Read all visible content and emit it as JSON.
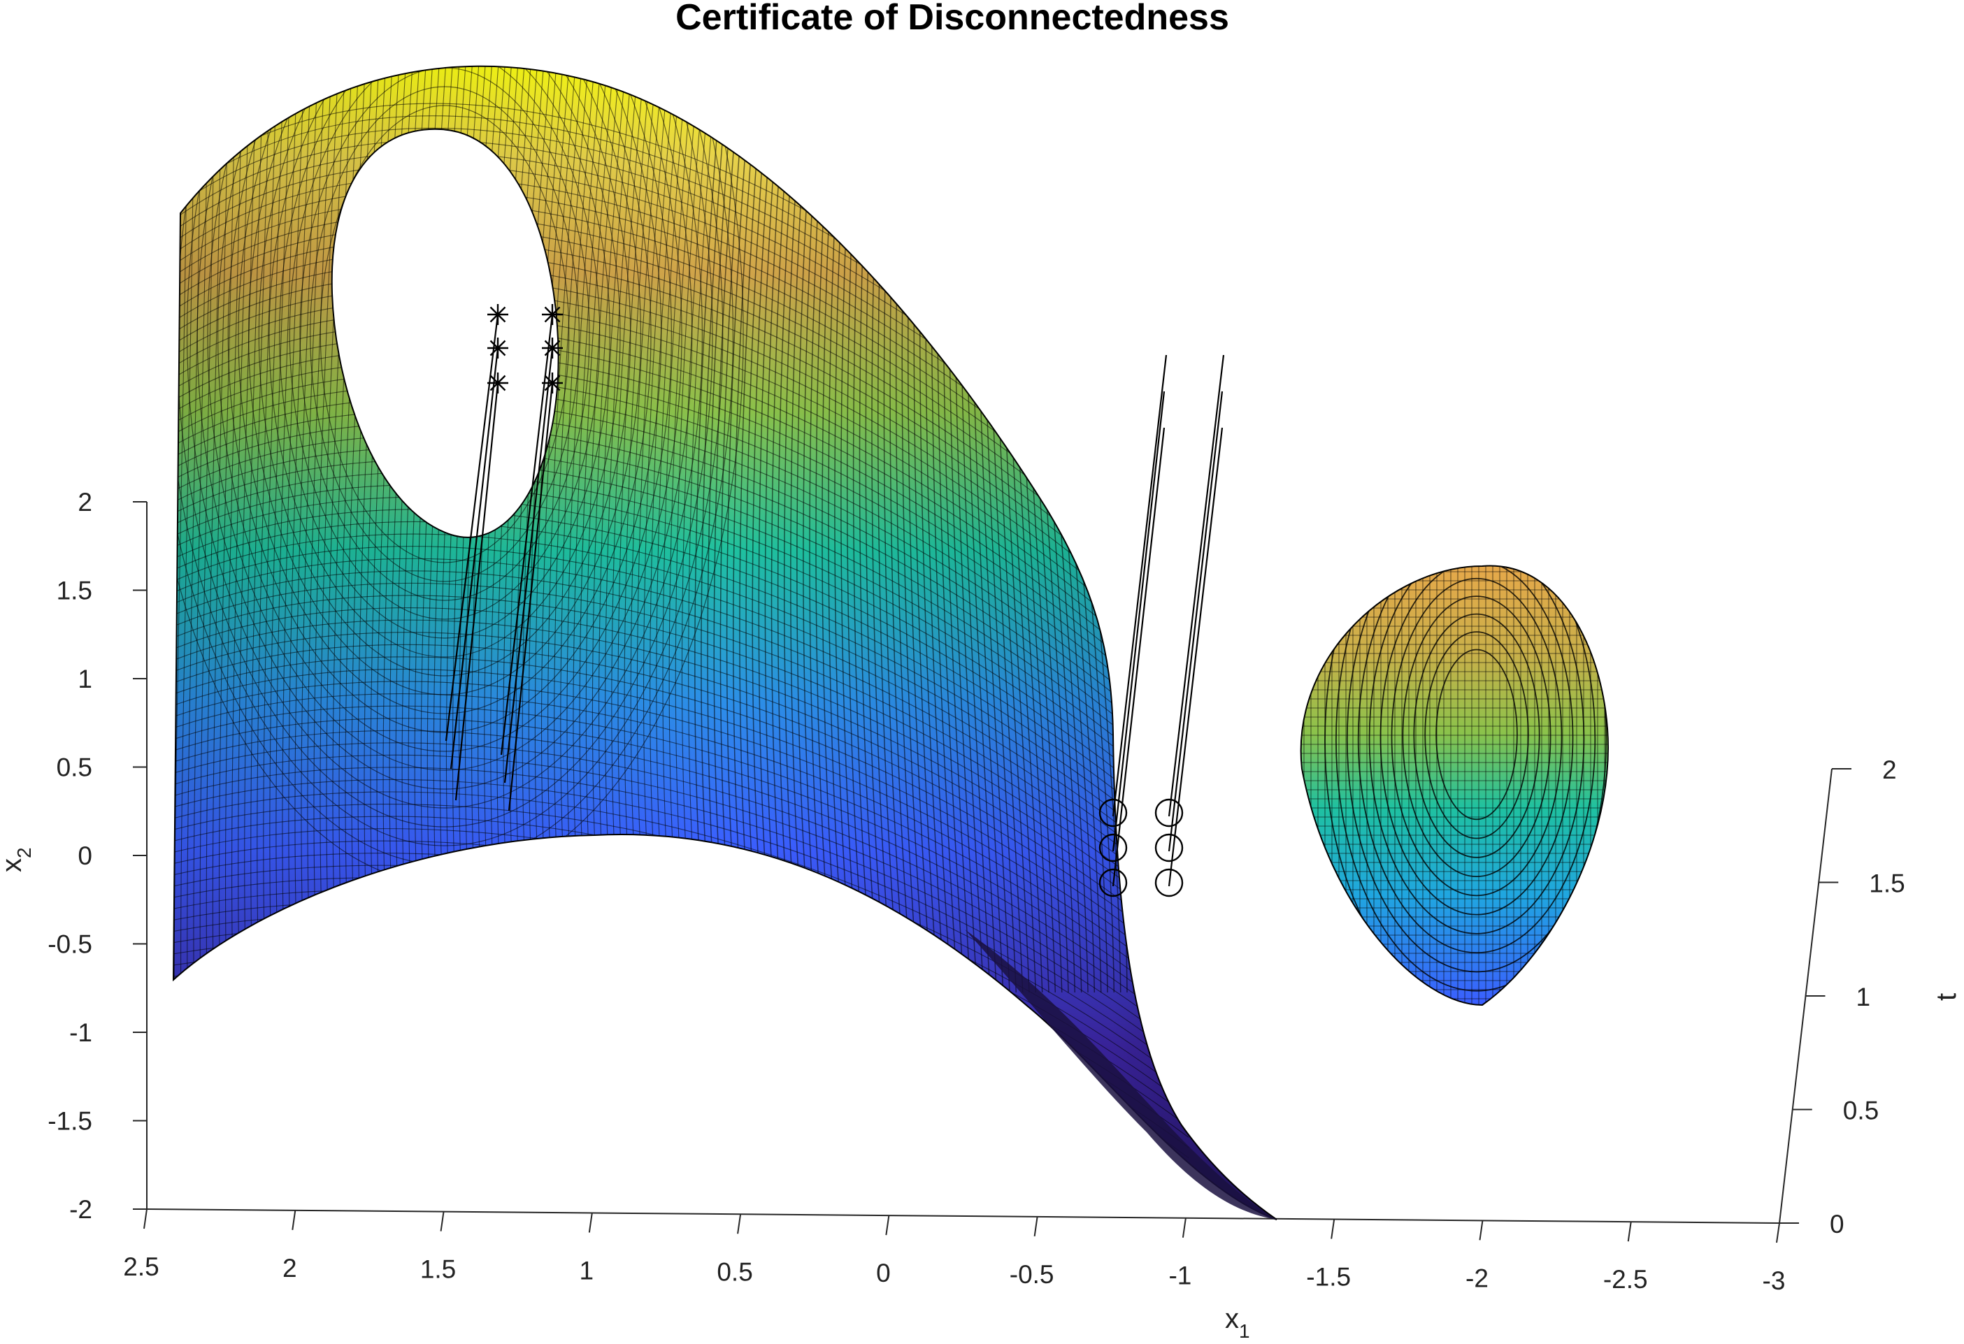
{
  "chart_data": {
    "type": "surface3d",
    "title": "Certificate of Disconnectedness",
    "x_axis": {
      "label_main": "x",
      "label_sub": "1",
      "ticks": [
        "2.5",
        "2",
        "1.5",
        "1",
        "0.5",
        "0",
        "-0.5",
        "-1",
        "-1.5",
        "-2",
        "-2.5",
        "-3"
      ],
      "range": [
        2.5,
        -3
      ]
    },
    "y_axis": {
      "label_main": "x",
      "label_sub": "2",
      "ticks": [
        "2",
        "1.5",
        "1",
        "0.5",
        "0",
        "-0.5",
        "-1",
        "-1.5",
        "-2"
      ],
      "range": [
        -2,
        2
      ]
    },
    "t_axis": {
      "label": "t",
      "ticks": [
        "2",
        "1.5",
        "1",
        "0.5",
        "0"
      ],
      "range": [
        0,
        2
      ]
    },
    "colormap": [
      "#3e26a8",
      "#3b5dff",
      "#20a6e0",
      "#1fc1a0",
      "#7fca58",
      "#d8b83a",
      "#fbc93a",
      "#f9fb15"
    ],
    "surfaces": [
      {
        "name": "",
        "shape": "curved sheet with elliptical hole",
        "x_range": [
          -0.6,
          2.4
        ],
        "x2_range": [
          -0.7,
          2.5
        ]
      },
      {
        "name": "",
        "shape": "closed blob",
        "x_center": -2.0,
        "x2_range": [
          -0.8,
          1.6
        ]
      }
    ],
    "trajectories": {
      "star_marker_groups": [
        {
          "x1": 1.3,
          "x2": [
            1.1,
            1.3,
            1.5
          ]
        },
        {
          "x1": 1.1,
          "x2": [
            1.1,
            1.3,
            1.5
          ]
        }
      ],
      "circle_marker_groups": [
        {
          "x1": -0.8,
          "x2": [
            -0.15,
            0.05,
            0.25
          ]
        },
        {
          "x1": -1.0,
          "x2": [
            -0.15,
            0.05,
            0.25
          ]
        }
      ]
    }
  }
}
